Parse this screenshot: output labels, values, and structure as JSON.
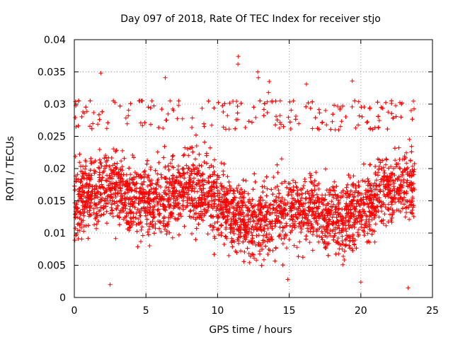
{
  "chart_data": {
    "type": "scatter",
    "title": "Day 097 of 2018, Rate Of TEC Index for receiver stjo",
    "xlabel": "GPS time / hours",
    "ylabel": "ROTI / TECUs",
    "xlim": [
      0,
      25
    ],
    "ylim": [
      0,
      0.04
    ],
    "x_ticks": [
      0,
      5,
      10,
      15,
      20,
      25
    ],
    "y_ticks": [
      0,
      0.005,
      0.01,
      0.015,
      0.02,
      0.025,
      0.03,
      0.035,
      0.04
    ],
    "x_tick_labels": [
      "0",
      "5",
      "10",
      "15",
      "20",
      "25"
    ],
    "y_tick_labels": [
      "0",
      "0.005",
      "0.01",
      "0.015",
      "0.02",
      "0.025",
      "0.03",
      "0.035",
      "0.04"
    ],
    "grid": true,
    "marker": "plus",
    "color": "#ff0000",
    "x_range_observed": [
      0,
      23.75
    ],
    "y_band_typical": [
      0.004,
      0.028
    ],
    "outliers": [
      {
        "x": 1.85,
        "y": 0.0348
      },
      {
        "x": 6.35,
        "y": 0.0341
      },
      {
        "x": 11.45,
        "y": 0.0374
      },
      {
        "x": 11.42,
        "y": 0.0362
      },
      {
        "x": 12.8,
        "y": 0.035
      },
      {
        "x": 12.85,
        "y": 0.0341
      },
      {
        "x": 13.6,
        "y": 0.0335
      },
      {
        "x": 13.55,
        "y": 0.0318
      },
      {
        "x": 19.4,
        "y": 0.0336
      },
      {
        "x": 16.2,
        "y": 0.0331
      },
      {
        "x": 23.3,
        "y": 0.0015
      },
      {
        "x": 2.5,
        "y": 0.002
      },
      {
        "x": 14.9,
        "y": 0.0028
      },
      {
        "x": 20.0,
        "y": 0.0024
      }
    ]
  }
}
